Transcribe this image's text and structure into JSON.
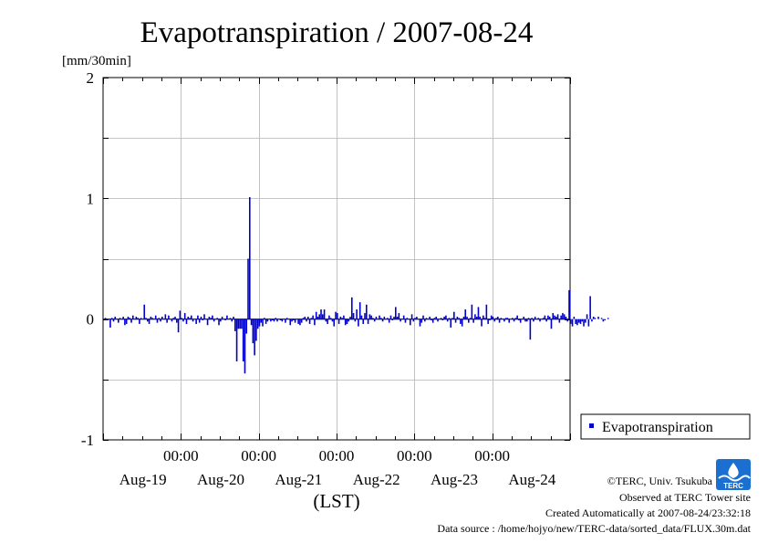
{
  "chart_data": {
    "type": "bar",
    "title": "Evapotranspiration / 2007-08-24",
    "ylabel": "[mm/30min]",
    "xlabel": "(LST)",
    "ylim": [
      -1,
      2
    ],
    "yticks": [
      "2",
      "1",
      "0",
      "-1"
    ],
    "ytick_values": [
      2,
      1,
      0,
      -1
    ],
    "xlim_days": [
      0,
      6
    ],
    "grid": true,
    "legend_position": "right",
    "time_tick_label": "00:00",
    "time_ticks_days": [
      1,
      2,
      3,
      4,
      5
    ],
    "date_labels": [
      "Aug-19",
      "Aug-20",
      "Aug-21",
      "Aug-22",
      "Aug-23",
      "Aug-24"
    ],
    "series": [
      {
        "name": "Evapotranspiration",
        "color": "#0000cc",
        "interval_minutes": 30,
        "start": "2007-08-19 00:00",
        "values": [
          0,
          0.01,
          -0.01,
          0,
          -0.07,
          0.01,
          -0.02,
          0.02,
          0,
          -0.03,
          0.01,
          0,
          0.02,
          -0.05,
          -0.04,
          0.02,
          0.01,
          -0.03,
          0.03,
          0,
          0.02,
          0.01,
          -0.04,
          0.01,
          0,
          0.12,
          0.01,
          -0.02,
          -0.04,
          0.02,
          0.01,
          0,
          0.03,
          -0.03,
          0.01,
          -0.02,
          0.02,
          0,
          0.04,
          -0.03,
          0.03,
          0,
          -0.02,
          0.01,
          0.02,
          -0.03,
          -0.11,
          0.07,
          0.01,
          -0.02,
          0.05,
          -0.04,
          0.02,
          0.01,
          0.03,
          -0.02,
          0,
          -0.04,
          0.03,
          -0.03,
          0.02,
          -0.01,
          0.04,
          0,
          -0.05,
          0.02,
          0.01,
          0.03,
          -0.02,
          0,
          0.01,
          -0.05,
          -0.02,
          0.02,
          0,
          -0.01,
          0.03,
          0,
          0.01,
          -0.02,
          0.02,
          -0.1,
          -0.35,
          -0.08,
          -0.08,
          -0.08,
          -0.35,
          -0.45,
          -0.12,
          0.5,
          1.01,
          -0.05,
          -0.2,
          -0.3,
          -0.18,
          -0.08,
          -0.06,
          -0.03,
          -0.06,
          0.01,
          -0.04,
          -0.02,
          0,
          -0.02,
          -0.01,
          -0.02,
          0.01,
          -0.02,
          0,
          -0.01,
          -0.02,
          0,
          -0.03,
          0.01,
          0,
          -0.05,
          -0.02,
          -0.01,
          -0.03,
          0,
          -0.04,
          -0.05,
          -0.03,
          0.01,
          0.02,
          -0.02,
          0.02,
          -0.04,
          0.01,
          0.03,
          -0.05,
          0.06,
          0.02,
          0.04,
          0.08,
          0.04,
          0.08,
          -0.02,
          -0.04,
          0.03,
          0.01,
          -0.02,
          -0.06,
          0.06,
          0.05,
          -0.04,
          0.02,
          0.01,
          0.03,
          -0.05,
          -0.04,
          -0.02,
          0.02,
          0.18,
          0.05,
          -0.02,
          0.08,
          -0.06,
          0.14,
          0.03,
          -0.04,
          0.05,
          0.12,
          -0.04,
          0.04,
          0.03,
          0.01,
          -0.02,
          0.02,
          0,
          0.03,
          0.01,
          -0.02,
          0.02,
          0,
          0.01,
          -0.03,
          0.03,
          -0.01,
          0.02,
          0.1,
          0.02,
          0.05,
          -0.02,
          0,
          0.03,
          -0.03,
          0.01,
          0,
          -0.05,
          0.04,
          -0.02,
          0.01,
          0.02,
          0,
          -0.06,
          -0.03,
          0.03,
          -0.02,
          0.01,
          0,
          0.02,
          -0.01,
          -0.03,
          0.01,
          0.02,
          -0.02,
          0,
          0.01,
          -0.01,
          0.02,
          0.03,
          -0.02,
          0.01,
          -0.07,
          0.01,
          0.06,
          -0.03,
          0.02,
          0.01,
          -0.04,
          -0.06,
          0.02,
          0.08,
          0.02,
          -0.03,
          0.01,
          0.12,
          -0.03,
          0.04,
          0.02,
          0.1,
          0.02,
          -0.06,
          0.03,
          0.01,
          0.12,
          -0.04,
          -0.01,
          0.03,
          0.02,
          -0.02,
          0.01,
          0.02,
          -0.03,
          0.01,
          0,
          -0.02,
          0.01,
          0.01,
          -0.03,
          0,
          0.01,
          -0.02,
          0.01,
          0.03,
          -0.01,
          -0.03,
          0,
          0.02,
          -0.02,
          -0.02,
          0.01,
          -0.17,
          0.01,
          -0.02,
          0.02,
          0,
          0.01,
          -0.02,
          0,
          0.01,
          0.03,
          -0.02,
          0.03,
          0.02,
          -0.08,
          0.05,
          0.03,
          0.02,
          0.04,
          -0.03,
          0.03,
          0.05,
          0.04,
          0.02,
          -0.02,
          0.24,
          -0.04,
          -0.06,
          0.02,
          -0.04,
          -0.05,
          -0.03,
          -0.04,
          -0.02,
          -0.06,
          -0.03,
          0.04,
          -0.06,
          0.19,
          -0.02,
          0.02,
          0.01,
          0,
          0.02,
          0,
          0.01,
          -0.02,
          -0.01,
          0,
          0.01
        ]
      }
    ]
  },
  "credits": {
    "copyright": "©TERC, Univ. Tsukuba",
    "observed": "Observed at TERC Tower site",
    "created": "Created Automatically at 2007-08-24/23:32:18",
    "source": "Data source : /home/hojyo/new/TERC-data/sorted_data/FLUX.30m.dat"
  },
  "logo": {
    "text": "TERC",
    "color": "#1a6fd1"
  }
}
